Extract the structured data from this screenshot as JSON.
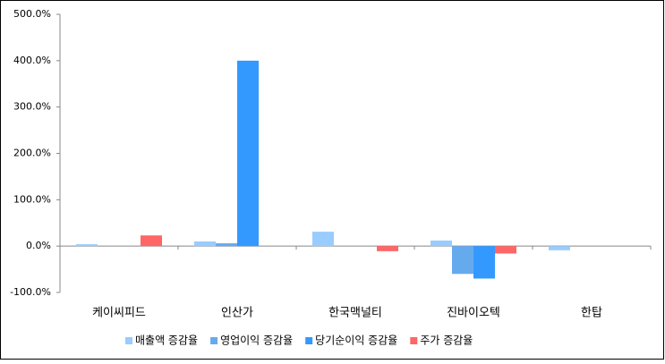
{
  "chart_data": {
    "type": "bar",
    "categories": [
      "케이씨피드",
      "인산가",
      "한국맥널티",
      "진바이오텍",
      "한탑"
    ],
    "series": [
      {
        "name": "매출액 증감율",
        "color": "#99ccff",
        "values": [
          4,
          10,
          31,
          12,
          -9
        ]
      },
      {
        "name": "영업이익 증감율",
        "color": "#66aaee",
        "values": [
          null,
          6,
          null,
          -60,
          null
        ]
      },
      {
        "name": "당기순이익 증감율",
        "color": "#3399ff",
        "values": [
          null,
          400,
          null,
          -70,
          null
        ]
      },
      {
        "name": "주가 증감율",
        "color": "#ff6666",
        "values": [
          23,
          null,
          -11,
          -16,
          null
        ]
      }
    ],
    "ylim": [
      -100,
      500
    ],
    "yticks": [
      {
        "value": -100,
        "label": "-100.0%"
      },
      {
        "value": 0,
        "label": "0.0%"
      },
      {
        "value": 100,
        "label": "100.0%"
      },
      {
        "value": 200,
        "label": "200.0%"
      },
      {
        "value": 300,
        "label": "300.0%"
      },
      {
        "value": 400,
        "label": "400.0%"
      },
      {
        "value": 500,
        "label": "500.0%"
      }
    ],
    "legend": "bottom"
  }
}
